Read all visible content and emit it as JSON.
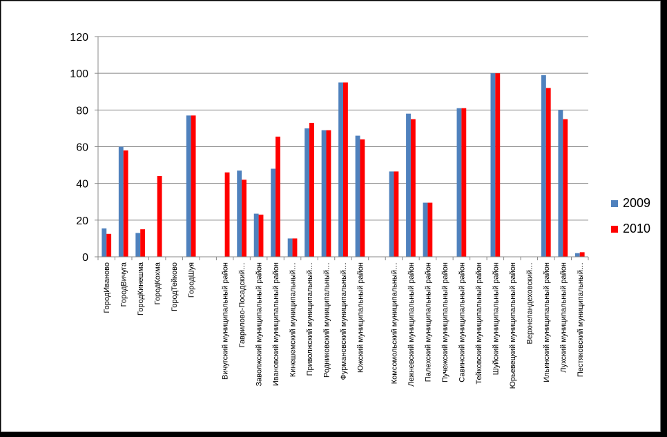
{
  "chart_data": {
    "type": "bar",
    "title": "",
    "xlabel": "",
    "ylabel": "",
    "ylim": [
      0,
      120
    ],
    "yticks": [
      "0",
      "20",
      "40",
      "60",
      "80",
      "100",
      "120"
    ],
    "grid": true,
    "legend_position": "right",
    "categories": [
      "ГородИваново",
      "ГородВичуга",
      "ГородКинешма",
      "ГородКохма",
      "ГородТейково",
      "ГородШуя",
      "",
      "Вичугский муниципальный район",
      "Гаврилово-Посадский…",
      "Заволжский муниципальный район",
      "Ивановский муниципальный район",
      "Кинешемский муниципальный…",
      "Приволжский муниципальный…",
      "Родниковский муниципальный…",
      "Фурмановский муниципальный…",
      "Южский муниципальный район",
      "",
      "Комсомольский муниципальный…",
      "Лежневский муниципальный район",
      "Палехский муниципальный район",
      "Пучежский муниципальный район",
      "Савинский муниципальный район",
      "Тейковский муниципальный район",
      "Шуйский муниципальный район",
      "Юрьевецкий муниципальный район",
      "Верхнеландеховский…",
      "Ильинский муниципальный район",
      "Лухский муниципальный район",
      "Пестяковский муниципальный…"
    ],
    "series": [
      {
        "name": "2009",
        "color": "#4f81bd",
        "values": [
          15.5,
          60,
          13,
          0,
          0,
          77,
          0,
          0,
          47,
          23.5,
          48,
          10,
          70,
          69,
          95,
          66,
          0,
          46.5,
          78,
          29.5,
          0,
          81,
          0,
          100,
          0,
          0,
          99,
          80,
          2
        ]
      },
      {
        "name": "2010",
        "color": "#ff0000",
        "values": [
          12.5,
          58,
          15,
          44,
          0,
          77,
          0,
          46,
          42,
          23,
          65.5,
          10,
          73,
          69,
          95,
          64,
          0,
          46.5,
          75,
          29.5,
          0,
          81,
          0,
          100,
          0,
          0,
          92,
          75,
          2.5
        ]
      }
    ]
  }
}
